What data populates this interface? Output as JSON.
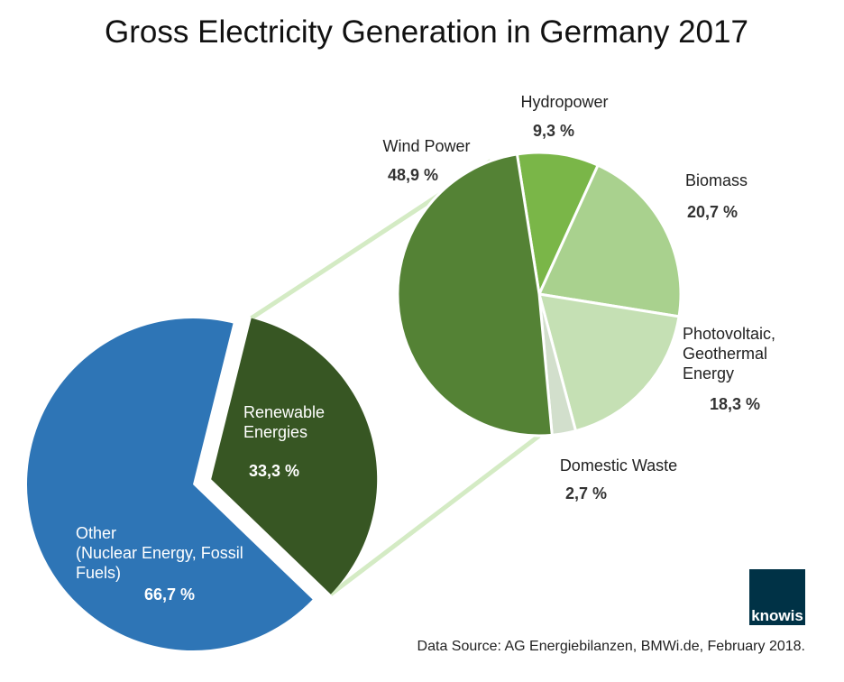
{
  "title": "Gross Electricity Generation in Germany 2017",
  "source": "Data Source: AG Energiebilanzen, BMWi.de, February 2018.",
  "logo": {
    "text": "knowis",
    "color": "#003246"
  },
  "chart_data": [
    {
      "type": "pie",
      "slices": [
        {
          "label_lines": [
            "Other",
            "(Nuclear Energy, Fossil",
            "Fuels)"
          ],
          "value": 66.7,
          "value_label": "66,7 %",
          "color": "#2e75b6"
        },
        {
          "label_lines": [
            "Renewable",
            "Energies"
          ],
          "value": 33.3,
          "value_label": "33,3 %",
          "color": "#375623"
        }
      ]
    },
    {
      "type": "pie",
      "slices": [
        {
          "label_lines": [
            "Wind Power"
          ],
          "value": 48.9,
          "value_label": "48,9 %",
          "color": "#548235"
        },
        {
          "label_lines": [
            "Hydropower"
          ],
          "value": 9.3,
          "value_label": "9,3 %",
          "color": "#7ab648"
        },
        {
          "label_lines": [
            "Biomass"
          ],
          "value": 20.7,
          "value_label": "20,7 %",
          "color": "#a9d18e"
        },
        {
          "label_lines": [
            "Photovoltaic,",
            "Geothermal",
            "Energy"
          ],
          "value": 18.3,
          "value_label": "18,3 %",
          "color": "#c5e0b4"
        },
        {
          "label_lines": [
            "Domestic Waste"
          ],
          "value": 2.7,
          "value_label": "2,7 %",
          "color": "#d2dfcc"
        }
      ]
    }
  ]
}
